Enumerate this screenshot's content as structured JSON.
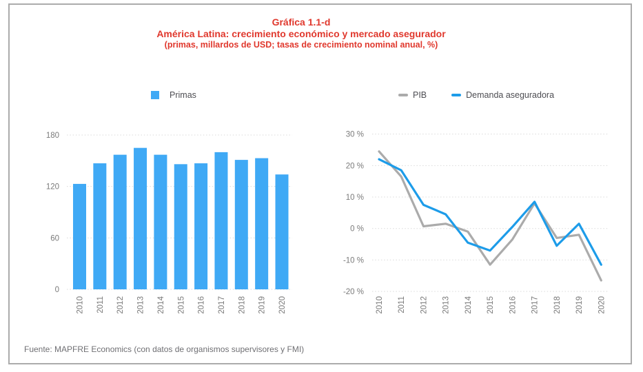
{
  "title": {
    "line1": "Gráfica 1.1-d",
    "line2": "América Latina: crecimiento económico y mercado asegurador",
    "line3": "(primas, millardos de USD; tasas de crecimiento nominal anual, %)"
  },
  "legend": {
    "primas": "Primas",
    "pib": "PIB",
    "demanda": "Demanda aseguradora"
  },
  "footer": {
    "source": "Fuente: MAPFRE Economics (con datos de organismos supervisores y FMI)"
  },
  "colors": {
    "title_red": "#e0382d",
    "bar_blue": "#3fa9f5",
    "line_blue": "#1d9ce9",
    "line_gray": "#ababab",
    "axis_label_gray": "#7a7a7a",
    "gridline_gray": "#d9d9d9",
    "frame_border": "#ababab",
    "footer_gray": "#6f6f73"
  },
  "chart_data": [
    {
      "type": "bar",
      "title": "Primas",
      "categories": [
        "2010",
        "2011",
        "2012",
        "2013",
        "2014",
        "2015",
        "2016",
        "2017",
        "2018",
        "2019",
        "2020"
      ],
      "values": [
        123,
        147,
        157,
        165,
        157,
        146,
        147,
        160,
        151,
        153,
        134
      ],
      "xlabel": "",
      "ylabel": "",
      "yticks": [
        180,
        120,
        60,
        0
      ],
      "ytick_suffix": "",
      "ylim": [
        0,
        190
      ],
      "grid": "dotted-horizontal",
      "legend_position": "top-left"
    },
    {
      "type": "line",
      "categories": [
        "2010",
        "2011",
        "2012",
        "2013",
        "2014",
        "2015",
        "2016",
        "2017",
        "2018",
        "2019",
        "2020"
      ],
      "series": [
        {
          "name": "PIB",
          "values": [
            24.5,
            16.5,
            0.7,
            1.5,
            -1,
            -11.5,
            -3.5,
            8,
            -3,
            -2,
            -16.5
          ]
        },
        {
          "name": "Demanda aseguradora",
          "values": [
            22,
            18.5,
            7.5,
            4.5,
            -4.5,
            -7,
            0.5,
            8.5,
            -5.5,
            1.5,
            -11.5
          ]
        }
      ],
      "xlabel": "",
      "ylabel": "",
      "yticks": [
        30,
        20,
        10,
        0,
        -10,
        -20
      ],
      "ytick_suffix": " %",
      "ylim": [
        -20,
        30
      ],
      "grid": "dotted-horizontal",
      "legend_position": "top-right"
    }
  ]
}
